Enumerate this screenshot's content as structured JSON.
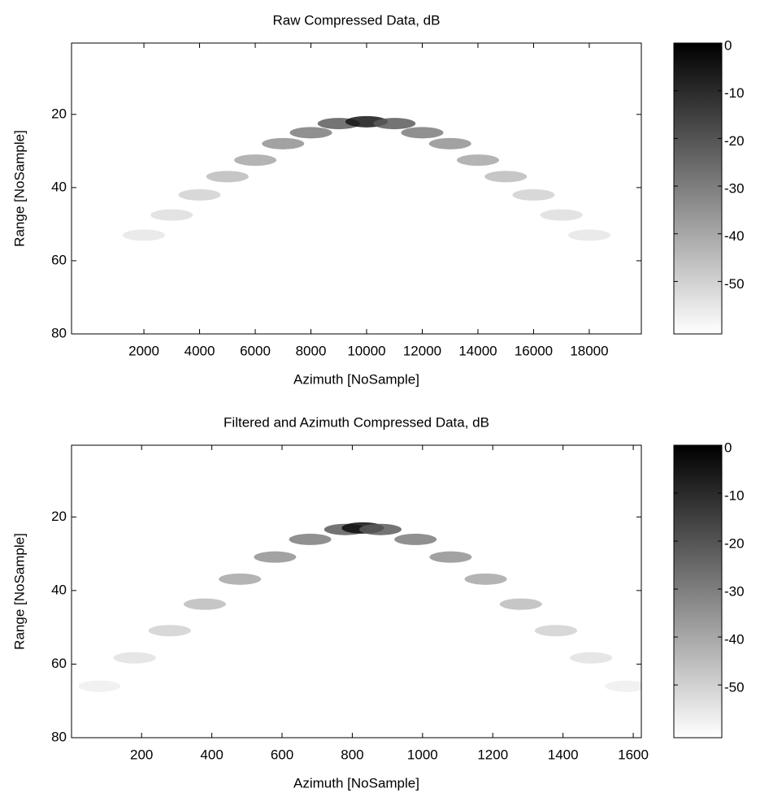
{
  "chart_data": [
    {
      "type": "heatmap",
      "title": "Raw Compressed Data, dB",
      "xlabel": "Azimuth [NoSample]",
      "ylabel": "Range [NoSample]",
      "xlim": [
        -600,
        19870
      ],
      "ylim": [
        0.5,
        80
      ],
      "y_reversed": true,
      "xticks": [
        2000,
        4000,
        6000,
        8000,
        10000,
        12000,
        14000,
        16000,
        18000
      ],
      "yticks": [
        20,
        40,
        60,
        80
      ],
      "x": [
        2000,
        3000,
        4000,
        5000,
        6000,
        7000,
        8000,
        9000,
        10000,
        11000,
        12000,
        13000,
        14000,
        15000,
        16000,
        17000,
        18000
      ],
      "y": [
        53,
        47.5,
        42,
        37,
        32.5,
        28,
        25,
        22.5,
        22,
        22.5,
        25,
        28,
        32.5,
        37,
        42,
        47.5,
        53
      ],
      "values": [
        -55,
        -53,
        -50,
        -45,
        -40,
        -35,
        -30,
        -22,
        -5,
        -22,
        -30,
        -35,
        -40,
        -45,
        -50,
        -53,
        -55
      ],
      "colormap": "gray",
      "clim": [
        -61,
        0
      ],
      "cticks": [
        0,
        -10,
        -20,
        -30,
        -40,
        -50
      ]
    },
    {
      "type": "heatmap",
      "title": "Filtered and Azimuth Compressed Data, dB",
      "xlabel": "Azimuth [NoSample]",
      "ylabel": "Range [NoSample]",
      "xlim": [
        0.5,
        1623
      ],
      "ylim": [
        0.5,
        80
      ],
      "y_reversed": true,
      "xticks": [
        200,
        400,
        600,
        800,
        1000,
        1200,
        1400,
        1600
      ],
      "yticks": [
        20,
        40,
        60,
        80
      ],
      "x": [
        80,
        180,
        280,
        380,
        480,
        580,
        680,
        780,
        830,
        880,
        980,
        1080,
        1180,
        1280,
        1380,
        1480,
        1580
      ],
      "y": [
        66,
        58.3,
        50.9,
        43.7,
        36.9,
        30.9,
        26.1,
        23.4,
        23,
        23.4,
        26.1,
        30.9,
        36.9,
        43.7,
        50.9,
        58.3,
        66
      ],
      "values": [
        -57,
        -54,
        -50,
        -45,
        -40,
        -35,
        -30,
        -22,
        -3,
        -22,
        -30,
        -35,
        -40,
        -45,
        -50,
        -54,
        -57
      ],
      "colormap": "gray",
      "clim": [
        -61,
        0
      ],
      "cticks": [
        0,
        -10,
        -20,
        -30,
        -40,
        -50
      ]
    }
  ]
}
